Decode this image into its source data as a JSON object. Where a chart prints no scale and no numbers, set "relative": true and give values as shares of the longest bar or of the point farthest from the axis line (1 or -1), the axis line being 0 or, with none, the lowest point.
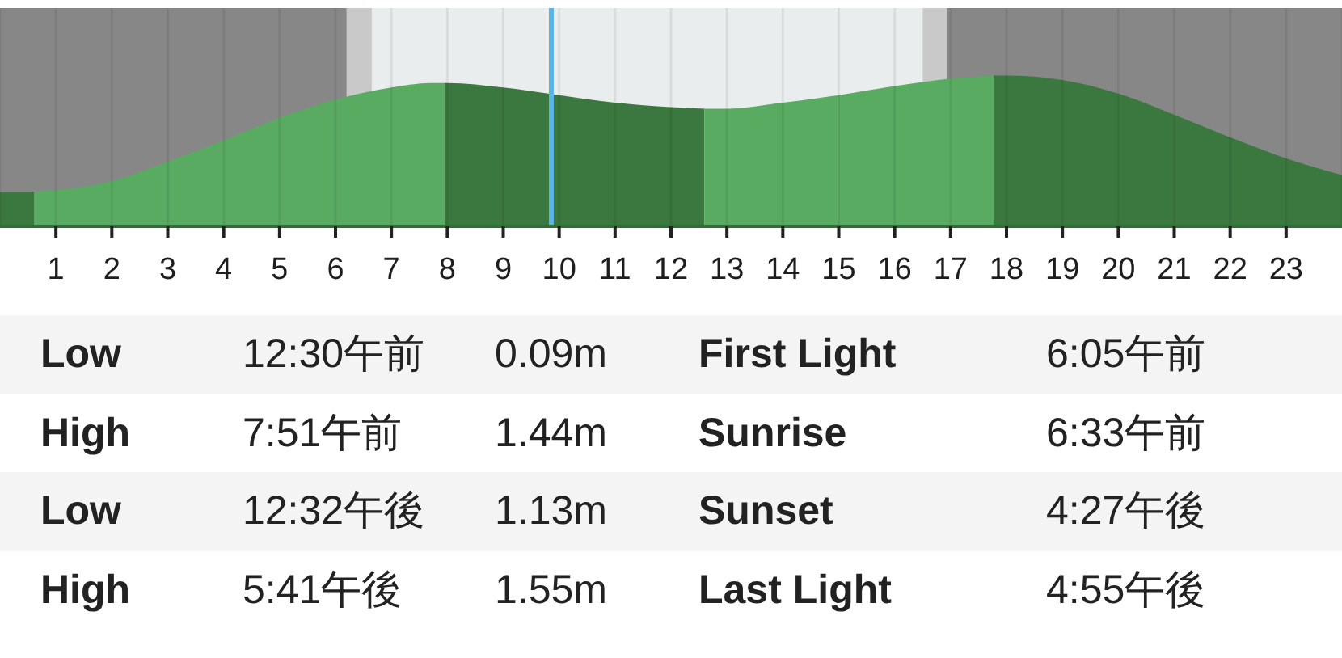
{
  "chart_data": [
    {
      "type": "area",
      "relative": true,
      "xlim": [
        0,
        24
      ],
      "xticks": [
        1,
        2,
        3,
        4,
        5,
        6,
        7,
        8,
        9,
        10,
        11,
        12,
        13,
        14,
        15,
        16,
        17,
        18,
        19,
        20,
        21,
        22,
        23
      ],
      "tick_labels": "x",
      "grid": "x",
      "bands": [
        {
          "axis": "x",
          "from": 0,
          "to": 6.2,
          "color": "#878787"
        },
        {
          "axis": "x",
          "from": 6.2,
          "to": 6.65,
          "color": "#c9c9c9"
        },
        {
          "axis": "x",
          "from": 6.65,
          "to": 16.5,
          "color": "#eaedee"
        },
        {
          "axis": "x",
          "from": 16.5,
          "to": 16.93,
          "color": "#c9c9c9"
        },
        {
          "axis": "x",
          "from": 16.93,
          "to": 24,
          "color": "#878787"
        }
      ],
      "ref_lines": [
        {
          "axis": "x",
          "value": 9.86,
          "color": "#5bb4e6"
        }
      ],
      "series": [
        {
          "color": "#3b783f",
          "x": [
            0,
            0.61
          ],
          "values": [
            0.23,
            0.23
          ]
        },
        {
          "color": "#5aab62",
          "x": [
            0.61,
            1,
            2,
            3,
            4,
            5,
            6,
            7,
            7.7,
            7.95
          ],
          "values": [
            0.23,
            0.24,
            0.3,
            0.43,
            0.57,
            0.72,
            0.84,
            0.92,
            0.95,
            0.95
          ]
        },
        {
          "color": "#3b783f",
          "x": [
            7.95,
            8,
            9,
            10,
            11,
            12,
            12.6
          ],
          "values": [
            0.95,
            0.95,
            0.92,
            0.87,
            0.82,
            0.79,
            0.78
          ]
        },
        {
          "color": "#5aab62",
          "x": [
            12.6,
            13,
            14,
            15,
            16,
            17,
            17.77
          ],
          "values": [
            0.78,
            0.78,
            0.82,
            0.87,
            0.93,
            0.98,
            1
          ]
        },
        {
          "color": "#3b783f",
          "x": [
            17.77,
            18,
            19,
            20,
            21,
            22,
            23,
            24
          ],
          "values": [
            1,
            1,
            0.97,
            0.88,
            0.74,
            0.59,
            0.45,
            0.34
          ]
        }
      ]
    },
    {
      "type": "other",
      "annotations": [
        "Low",
        "12:30午前",
        "0.09m",
        "First Light",
        "6:05午前",
        "High",
        "7:51午前",
        "1.44m",
        "Sunrise",
        "6:33午前",
        "Low",
        "12:32午後",
        "1.13m",
        "Sunset",
        "4:27午後",
        "High",
        "5:41午後",
        "1.55m",
        "Last Light",
        "4:55午後"
      ]
    }
  ]
}
